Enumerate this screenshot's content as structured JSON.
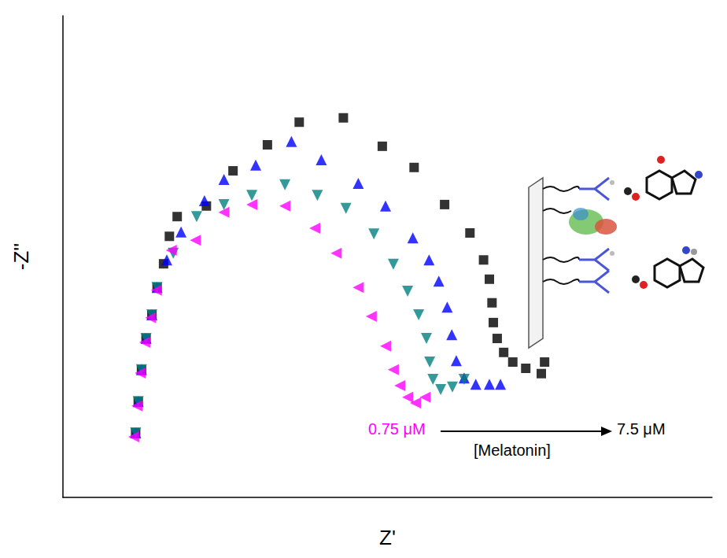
{
  "chart_data": {
    "type": "scatter",
    "x_label": "Z'",
    "y_label": "-Z''",
    "xlim": [
      0,
      100
    ],
    "ylim": [
      0,
      100
    ],
    "tick_labels": false,
    "grid": false,
    "annotations": {
      "start": "0.75 μM",
      "end": "7.5 μM",
      "label": "[Melatonin]"
    },
    "series": [
      {
        "color": "#000000",
        "marker": "square",
        "x": [
          11.2,
          11.6,
          12.1,
          12.8,
          13.7,
          14.5,
          15.5,
          16.4,
          17.6,
          22.1,
          26.2,
          31.5,
          36.4,
          43.2,
          49.2,
          54.1,
          58.8,
          62.7,
          64.8,
          65.7,
          66.1,
          66.3,
          66.9,
          67.9,
          69.3,
          71.3,
          73.7,
          74.2
        ],
        "y": [
          13.4,
          19.9,
          26.5,
          33.0,
          37.9,
          43.6,
          48.5,
          54.2,
          58.3,
          60.5,
          67.8,
          73.2,
          77.9,
          78.8,
          72.9,
          68.5,
          60.8,
          54.9,
          49.3,
          45.3,
          40.4,
          36.3,
          33.0,
          30.1,
          28.1,
          26.8,
          25.7,
          28.1
        ]
      },
      {
        "color": "#0000ff",
        "marker": "triangle-up",
        "x": [
          11.2,
          11.6,
          12.1,
          12.8,
          13.7,
          14.5,
          16.0,
          18.2,
          21.8,
          24.8,
          29.7,
          35.2,
          39.8,
          45.5,
          49.7,
          53.9,
          56.4,
          57.9,
          59.2,
          59.9,
          60.6,
          61.8,
          63.6,
          65.7,
          67.4
        ],
        "y": [
          13.4,
          19.9,
          26.5,
          33.0,
          37.9,
          43.6,
          49.3,
          55.1,
          61.6,
          66.0,
          69.0,
          73.9,
          70.1,
          65.2,
          60.5,
          53.9,
          49.3,
          44.9,
          39.5,
          33.8,
          28.4,
          24.8,
          23.5,
          23.5,
          23.5
        ]
      },
      {
        "color": "#008080",
        "marker": "triangle-down",
        "x": [
          11.2,
          11.6,
          12.1,
          12.8,
          13.7,
          14.5,
          17.0,
          20.6,
          24.8,
          29.1,
          34.2,
          39.2,
          43.6,
          47.9,
          50.9,
          53.1,
          54.8,
          56.0,
          56.5,
          57.0,
          58.2,
          60.0,
          61.8
        ],
        "y": [
          13.4,
          19.9,
          26.5,
          33.0,
          37.9,
          43.6,
          50.7,
          58.3,
          60.8,
          62.7,
          64.9,
          62.7,
          60.0,
          54.7,
          48.4,
          42.8,
          37.9,
          33.0,
          28.1,
          24.5,
          22.4,
          22.9,
          24.5
        ]
      },
      {
        "color": "#ff00ff",
        "marker": "triangle-left",
        "x": [
          10.9,
          11.4,
          11.9,
          12.6,
          13.5,
          14.4,
          16.7,
          20.4,
          24.8,
          29.1,
          34.2,
          38.8,
          42.1,
          45.5,
          47.5,
          49.7,
          50.9,
          51.9,
          53.1,
          54.3,
          55.8
        ],
        "y": [
          12.6,
          19.0,
          25.8,
          32.2,
          37.3,
          43.0,
          51.3,
          53.4,
          59.2,
          60.8,
          60.5,
          55.9,
          50.7,
          43.6,
          37.6,
          31.4,
          26.5,
          23.2,
          20.8,
          19.6,
          20.8
        ]
      }
    ]
  }
}
